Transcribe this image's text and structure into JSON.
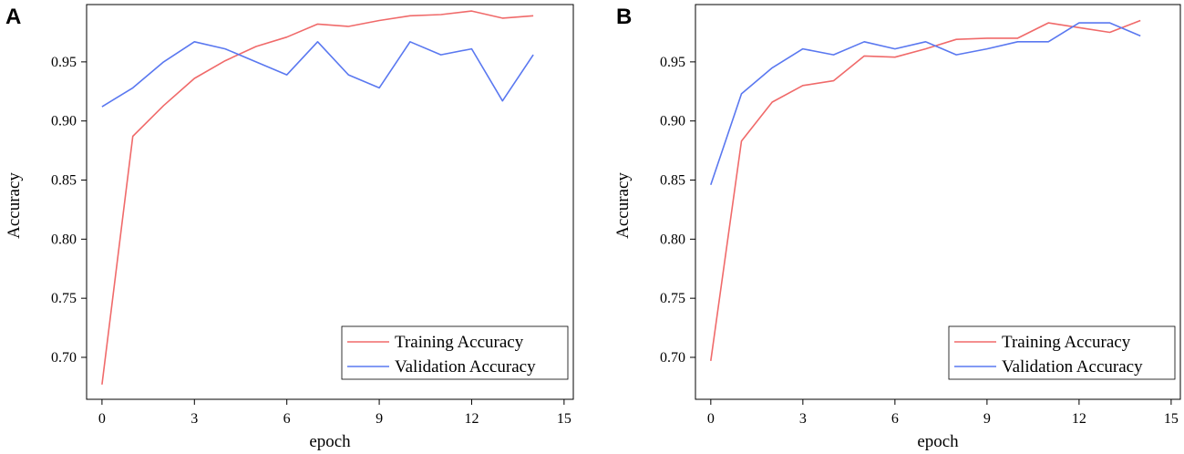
{
  "chart_data": [
    {
      "panel": "A",
      "type": "line",
      "xlabel": "epoch",
      "ylabel": "Accuracy",
      "xlim": [
        -0.5,
        15.3
      ],
      "ylim": [
        0.6645,
        0.9985
      ],
      "xticks": [
        0,
        3,
        6,
        9,
        12,
        15
      ],
      "xtick_labels": [
        "0",
        "3",
        "6",
        "9",
        "12",
        "15"
      ],
      "yticks": [
        0.7,
        0.75,
        0.8,
        0.85,
        0.9,
        0.95
      ],
      "ytick_labels": [
        "0.70",
        "0.75",
        "0.80",
        "0.85",
        "0.90",
        "0.95"
      ],
      "legend_position": "bottom-right",
      "x": [
        0,
        1,
        2,
        3,
        4,
        5,
        6,
        7,
        8,
        9,
        10,
        11,
        12,
        13,
        14
      ],
      "series": [
        {
          "name": "Training Accuracy",
          "color": "#f06a6a",
          "values": [
            0.677,
            0.887,
            0.913,
            0.936,
            0.951,
            0.963,
            0.971,
            0.982,
            0.98,
            0.985,
            0.989,
            0.99,
            0.993,
            0.987,
            0.989
          ]
        },
        {
          "name": "Validation Accuracy",
          "color": "#5a78f0",
          "values": [
            0.912,
            0.928,
            0.95,
            0.967,
            0.961,
            0.95,
            0.939,
            0.967,
            0.939,
            0.928,
            0.967,
            0.956,
            0.961,
            0.917,
            0.956
          ]
        }
      ]
    },
    {
      "panel": "B",
      "type": "line",
      "xlabel": "epoch",
      "ylabel": "Accuracy",
      "xlim": [
        -0.5,
        15.3
      ],
      "ylim": [
        0.6645,
        0.9985
      ],
      "xticks": [
        0,
        3,
        6,
        9,
        12,
        15
      ],
      "xtick_labels": [
        "0",
        "3",
        "6",
        "9",
        "12",
        "15"
      ],
      "yticks": [
        0.7,
        0.75,
        0.8,
        0.85,
        0.9,
        0.95
      ],
      "ytick_labels": [
        "0.70",
        "0.75",
        "0.80",
        "0.85",
        "0.90",
        "0.95"
      ],
      "legend_position": "bottom-right",
      "x": [
        0,
        1,
        2,
        3,
        4,
        5,
        6,
        7,
        8,
        9,
        10,
        11,
        12,
        13,
        14
      ],
      "series": [
        {
          "name": "Training Accuracy",
          "color": "#f06a6a",
          "values": [
            0.697,
            0.883,
            0.916,
            0.93,
            0.934,
            0.955,
            0.954,
            0.961,
            0.969,
            0.97,
            0.97,
            0.983,
            0.979,
            0.975,
            0.985
          ]
        },
        {
          "name": "Validation Accuracy",
          "color": "#5a78f0",
          "values": [
            0.846,
            0.923,
            0.945,
            0.961,
            0.956,
            0.967,
            0.961,
            0.967,
            0.956,
            0.961,
            0.967,
            0.967,
            0.983,
            0.983,
            0.972
          ]
        }
      ]
    }
  ]
}
